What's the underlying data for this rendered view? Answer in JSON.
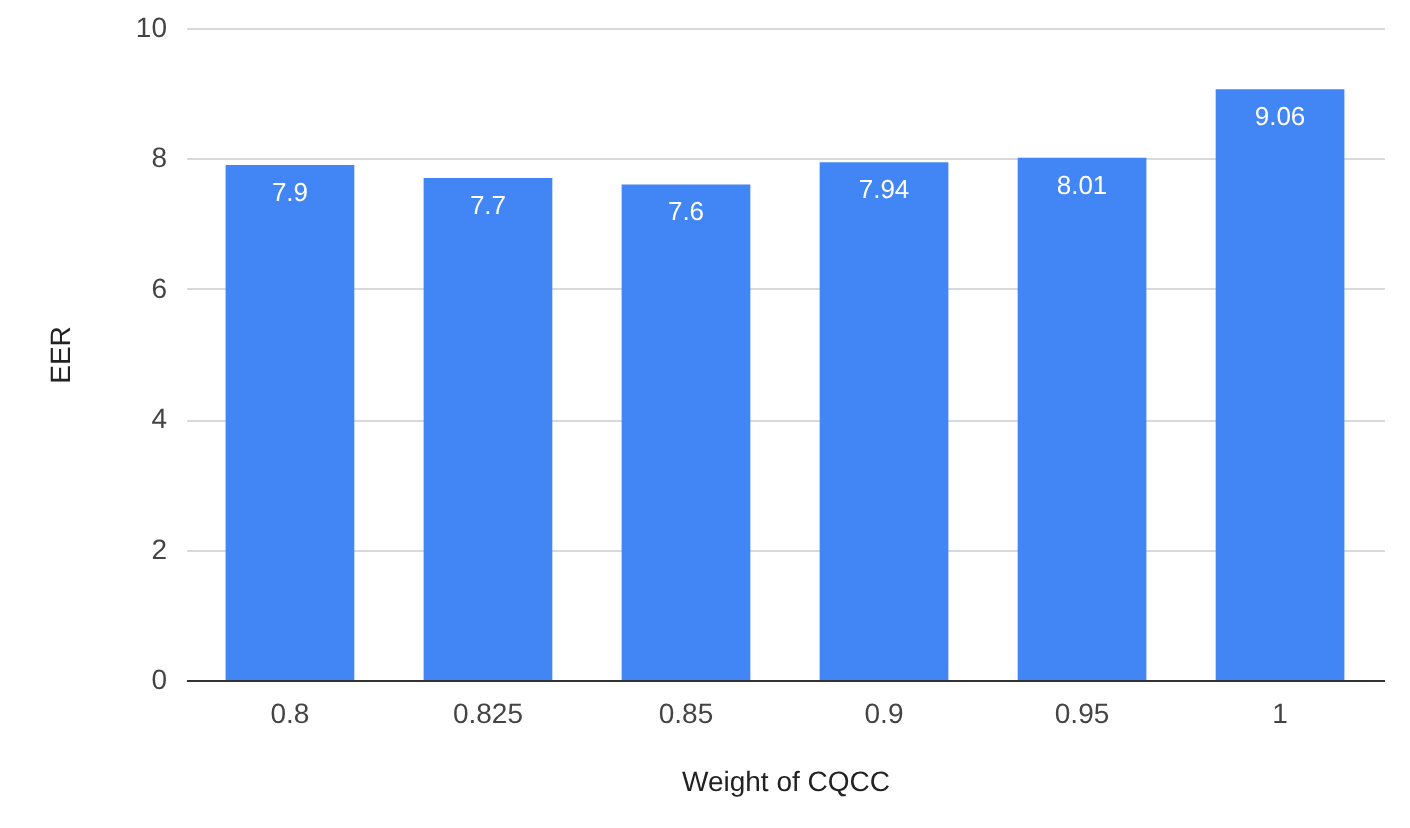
{
  "chart_data": {
    "type": "bar",
    "xlabel": "Weight of CQCC",
    "ylabel": "EER",
    "categories": [
      "0.8",
      "0.825",
      "0.85",
      "0.9",
      "0.95",
      "1"
    ],
    "values": [
      7.9,
      7.7,
      7.6,
      7.94,
      8.01,
      9.06
    ],
    "color": "#4285f4",
    "ylim": [
      0,
      10
    ],
    "yticks": [
      0,
      2,
      4,
      6,
      8,
      10
    ],
    "grid": "y",
    "data_labels": true
  }
}
